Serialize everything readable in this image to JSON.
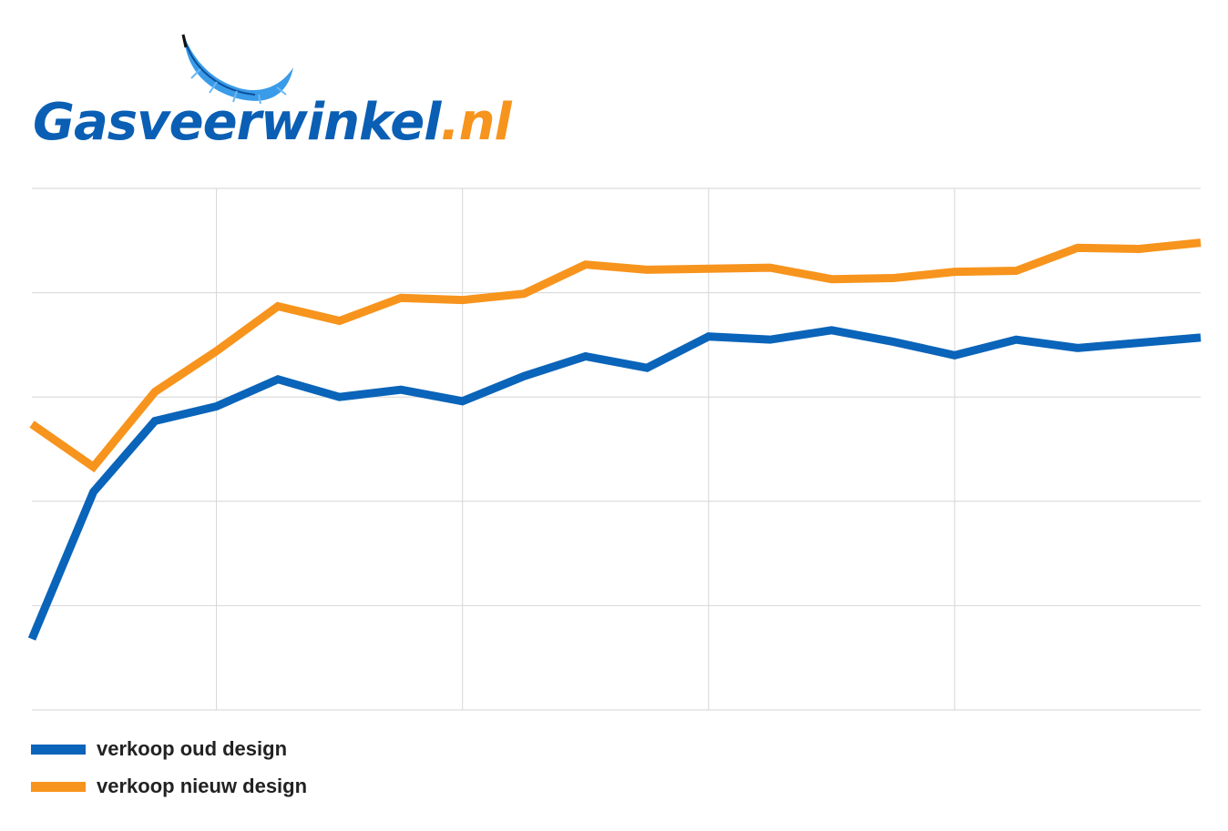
{
  "logo": {
    "main": "Gasveerwinkel",
    "tld": ".nl",
    "icon": "feather-icon",
    "colors": {
      "main": "#0a5fb4",
      "tld": "#f7941d"
    }
  },
  "chart_data": {
    "type": "line",
    "title": "",
    "xlabel": "",
    "ylabel": "",
    "grid": true,
    "ylim": [
      0,
      5
    ],
    "legend_position": "bottom-left",
    "x": [
      1,
      2,
      3,
      4,
      5,
      6,
      7,
      8,
      9,
      10,
      11,
      12,
      13,
      14,
      15,
      16,
      17,
      18,
      19,
      20
    ],
    "series": [
      {
        "name": "verkoop oud design",
        "color": "#0a64b9",
        "values": [
          0.68,
          2.09,
          2.77,
          2.91,
          3.17,
          3.0,
          3.07,
          2.96,
          3.2,
          3.39,
          3.28,
          3.58,
          3.55,
          3.64,
          3.53,
          3.4,
          3.55,
          3.47,
          3.52,
          3.57
        ]
      },
      {
        "name": "verkoop nieuw design",
        "color": "#f7941d",
        "values": [
          2.74,
          2.33,
          3.05,
          3.44,
          3.87,
          3.73,
          3.95,
          3.93,
          3.99,
          4.27,
          4.22,
          4.23,
          4.24,
          4.13,
          4.14,
          4.2,
          4.21,
          4.43,
          4.42,
          4.48
        ]
      }
    ]
  }
}
